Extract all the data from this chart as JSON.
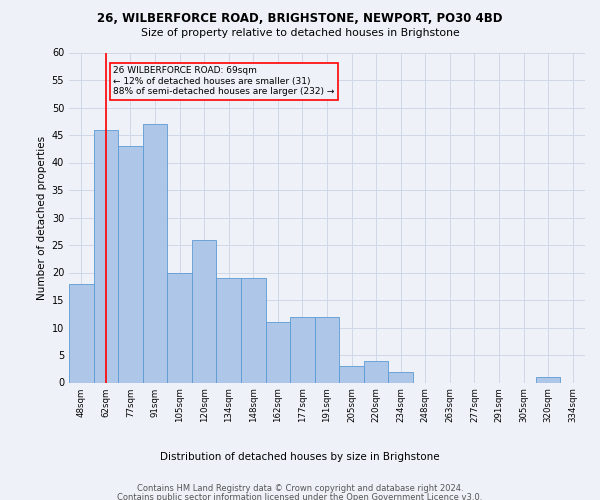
{
  "title1": "26, WILBERFORCE ROAD, BRIGHSTONE, NEWPORT, PO30 4BD",
  "title2": "Size of property relative to detached houses in Brighstone",
  "xlabel": "Distribution of detached houses by size in Brighstone",
  "ylabel": "Number of detached properties",
  "categories": [
    "48sqm",
    "62sqm",
    "77sqm",
    "91sqm",
    "105sqm",
    "120sqm",
    "134sqm",
    "148sqm",
    "162sqm",
    "177sqm",
    "191sqm",
    "205sqm",
    "220sqm",
    "234sqm",
    "248sqm",
    "263sqm",
    "277sqm",
    "291sqm",
    "305sqm",
    "320sqm",
    "334sqm"
  ],
  "values": [
    18,
    46,
    43,
    47,
    20,
    26,
    19,
    19,
    11,
    12,
    12,
    3,
    4,
    2,
    0,
    0,
    0,
    0,
    0,
    1,
    0
  ],
  "bar_color": "#aec6e8",
  "bar_edge_color": "#5b9bd5",
  "vline_x": 1,
  "vline_color": "#ff0000",
  "annotation_text": "26 WILBERFORCE ROAD: 69sqm\n← 12% of detached houses are smaller (31)\n88% of semi-detached houses are larger (232) →",
  "annotation_box_color": "#ff0000",
  "ylim": [
    0,
    60
  ],
  "yticks": [
    0,
    5,
    10,
    15,
    20,
    25,
    30,
    35,
    40,
    45,
    50,
    55,
    60
  ],
  "grid_color": "#d0d8e8",
  "background_color": "#eef2f8",
  "footer1": "Contains HM Land Registry data © Crown copyright and database right 2024.",
  "footer2": "Contains public sector information licensed under the Open Government Licence v3.0."
}
